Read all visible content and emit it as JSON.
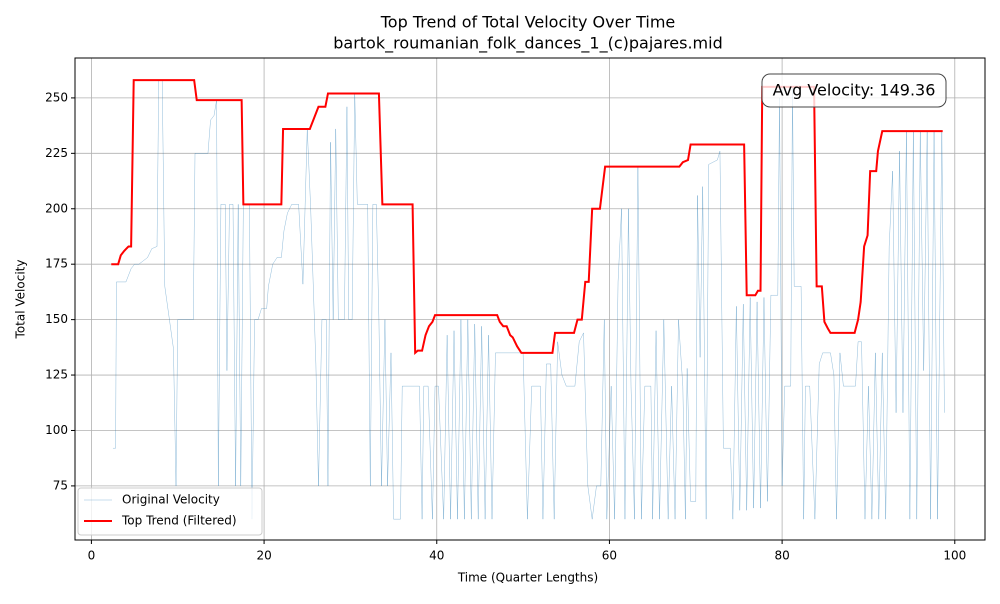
{
  "chart_data": {
    "type": "line",
    "title": "Top Trend of Total Velocity Over Time",
    "subtitle": "bartok_roumanian_folk_dances_1_(c)pajares.mid",
    "x_label": "Time (Quarter Lengths)",
    "y_label": "Total Velocity",
    "annotation": "Avg Velocity: 149.36",
    "xlim": [
      -1.9,
      103.5
    ],
    "ylim": [
      50.6,
      268
    ],
    "xticks": [
      0,
      20,
      40,
      60,
      80,
      100
    ],
    "yticks": [
      75,
      100,
      125,
      150,
      175,
      200,
      225,
      250
    ],
    "grid": true,
    "legend": "lower left",
    "series": [
      {
        "name": "Original Velocity",
        "color": "#1f77b4",
        "x": [
          2.5,
          2.8,
          2.9,
          4,
          4.3,
          4.6,
          5,
          5.5,
          6.5,
          7,
          7.6,
          7.8,
          8.2,
          8.5,
          9.5,
          9.8,
          10,
          11.8,
          12,
          13.5,
          13.8,
          14.2,
          14.5,
          14.7,
          15,
          15.5,
          15.7,
          16,
          16.4,
          16.7,
          17,
          17.3,
          17.6,
          18.3,
          18.6,
          18.9,
          19.3,
          19.7,
          20.3,
          20.5,
          21,
          21.5,
          22,
          22.3,
          22.7,
          23.2,
          24,
          24.5,
          25,
          25.4,
          26,
          26.3,
          26.7,
          27.2,
          27.4,
          27.7,
          28,
          28.3,
          28.6,
          29.3,
          29.6,
          29.8,
          30.2,
          30.5,
          30.8,
          32,
          32.3,
          32.6,
          33,
          33.3,
          33.6,
          34,
          34.3,
          34.7,
          35,
          35.8,
          36,
          38,
          38.3,
          38.5,
          39,
          39.5,
          39.8,
          40.2,
          40.8,
          41.2,
          41.6,
          42,
          42.4,
          42.8,
          43.2,
          43.6,
          44,
          44.4,
          44.8,
          45.2,
          45.6,
          46,
          46.4,
          46.8,
          50,
          50.5,
          51,
          52,
          52.3,
          52.7,
          53.2,
          53.6,
          54,
          54.5,
          55,
          56,
          56.5,
          57,
          57.5,
          58,
          58.5,
          59,
          59.4,
          59.7,
          60.2,
          60.6,
          61,
          61.4,
          61.8,
          62.2,
          62.5,
          62.9,
          63.3,
          63.7,
          64.1,
          64.8,
          65,
          65.4,
          65.8,
          66.3,
          66.8,
          67.2,
          67.6,
          68,
          68.5,
          68.8,
          69,
          69.4,
          70,
          70.2,
          70.5,
          70.8,
          71.2,
          71.5,
          72.5,
          72.8,
          73.2,
          74,
          74.3,
          74.7,
          75.1,
          75.5,
          75.9,
          76.3,
          76.7,
          77.1,
          77.5,
          77.9,
          78.3,
          78.7,
          79.5,
          79.7,
          80,
          80.3,
          81,
          81.2,
          81.4,
          82.2,
          82.5,
          82.7,
          83.2,
          83.8,
          84.3,
          84.7,
          85.6,
          86,
          86.3,
          86.7,
          87.1,
          88.5,
          88.8,
          89.2,
          89.6,
          90,
          90.4,
          90.8,
          91.2,
          91.6,
          92,
          92.4,
          92.8,
          93.2,
          93.6,
          94,
          94.4,
          94.8,
          95.2,
          95.6,
          96,
          96.4,
          96.8,
          97.2,
          97.6,
          98,
          98.5,
          98.8
        ],
        "values": [
          92,
          92,
          167,
          167,
          170,
          173,
          175,
          175,
          178,
          182,
          183,
          258,
          258,
          165,
          137,
          75,
          150,
          150,
          225,
          225,
          240,
          242,
          249,
          75,
          202,
          202,
          127,
          202,
          202,
          75,
          202,
          75,
          202,
          202,
          60,
          150,
          150,
          155,
          155,
          165,
          175,
          178,
          178,
          190,
          198,
          202,
          202,
          166,
          236,
          200,
          130,
          75,
          150,
          150,
          75,
          230,
          150,
          236,
          150,
          150,
          246,
          150,
          150,
          252,
          202,
          202,
          75,
          202,
          202,
          150,
          75,
          150,
          75,
          135,
          60,
          60,
          120,
          120,
          60,
          120,
          120,
          60,
          120,
          120,
          60,
          143,
          60,
          145,
          60,
          150,
          60,
          150,
          60,
          148,
          60,
          147,
          60,
          143,
          60,
          135,
          135,
          60,
          120,
          120,
          60,
          130,
          130,
          60,
          140,
          125,
          120,
          120,
          140,
          144,
          75,
          60,
          75,
          75,
          150,
          60,
          120,
          60,
          167,
          200,
          60,
          200,
          120,
          60,
          219,
          60,
          120,
          120,
          60,
          145,
          60,
          150,
          60,
          120,
          60,
          150,
          120,
          60,
          128,
          68,
          68,
          206,
          133,
          210,
          60,
          220,
          222,
          226,
          92,
          92,
          60,
          156,
          64,
          157,
          64,
          160,
          65,
          158,
          65,
          160,
          68,
          161,
          161,
          250,
          75,
          120,
          120,
          255,
          165,
          165,
          60,
          120,
          120,
          60,
          130,
          135,
          135,
          125,
          60,
          135,
          120,
          120,
          140,
          140,
          60,
          120,
          60,
          135,
          60,
          135,
          60,
          183,
          217,
          108,
          226,
          108,
          235,
          60,
          235,
          60,
          235,
          127,
          235,
          60,
          235,
          60,
          235,
          108
        ]
      },
      {
        "name": "Top Trend (Filtered)",
        "color": "#ff0000",
        "x": [
          2.3,
          3.1,
          3.4,
          3.8,
          4.3,
          4.6,
          4.9,
          11.9,
          12.2,
          17.4,
          17.6,
          22.0,
          22.2,
          25.3,
          25.8,
          26.3,
          27.1,
          27.4,
          33.3,
          33.7,
          37.2,
          37.5,
          37.8,
          38.3,
          38.7,
          39.1,
          39.5,
          39.8,
          47.0,
          47.3,
          47.7,
          48.1,
          48.5,
          48.8,
          49.3,
          49.8,
          53.4,
          53.7,
          55.9,
          56.3,
          56.8,
          57.2,
          57.6,
          58.0,
          58.9,
          59.5,
          68.1,
          68.5,
          69.1,
          69.4,
          75.6,
          75.9,
          76.9,
          77.2,
          77.5,
          77.7,
          83.7,
          84.0,
          84.6,
          84.9,
          85.3,
          85.6,
          88.4,
          88.8,
          89.1,
          89.5,
          89.9,
          90.2,
          90.9,
          91.1,
          91.6,
          98.6
        ],
        "values": [
          175,
          175,
          179,
          181,
          183,
          183,
          258,
          258,
          249,
          249,
          202,
          202,
          236,
          236,
          241,
          246,
          246,
          252,
          252,
          202,
          202,
          135,
          136,
          136,
          143,
          147,
          149,
          152,
          152,
          149,
          147,
          147,
          143,
          142,
          138,
          135,
          135,
          144,
          144,
          150,
          150,
          167,
          167,
          200,
          200,
          219,
          219,
          221,
          222,
          229,
          229,
          161,
          161,
          163,
          163,
          255,
          255,
          165,
          165,
          149,
          146,
          144,
          144,
          150,
          158,
          183,
          188,
          217,
          217,
          226,
          235,
          235
        ]
      }
    ]
  }
}
